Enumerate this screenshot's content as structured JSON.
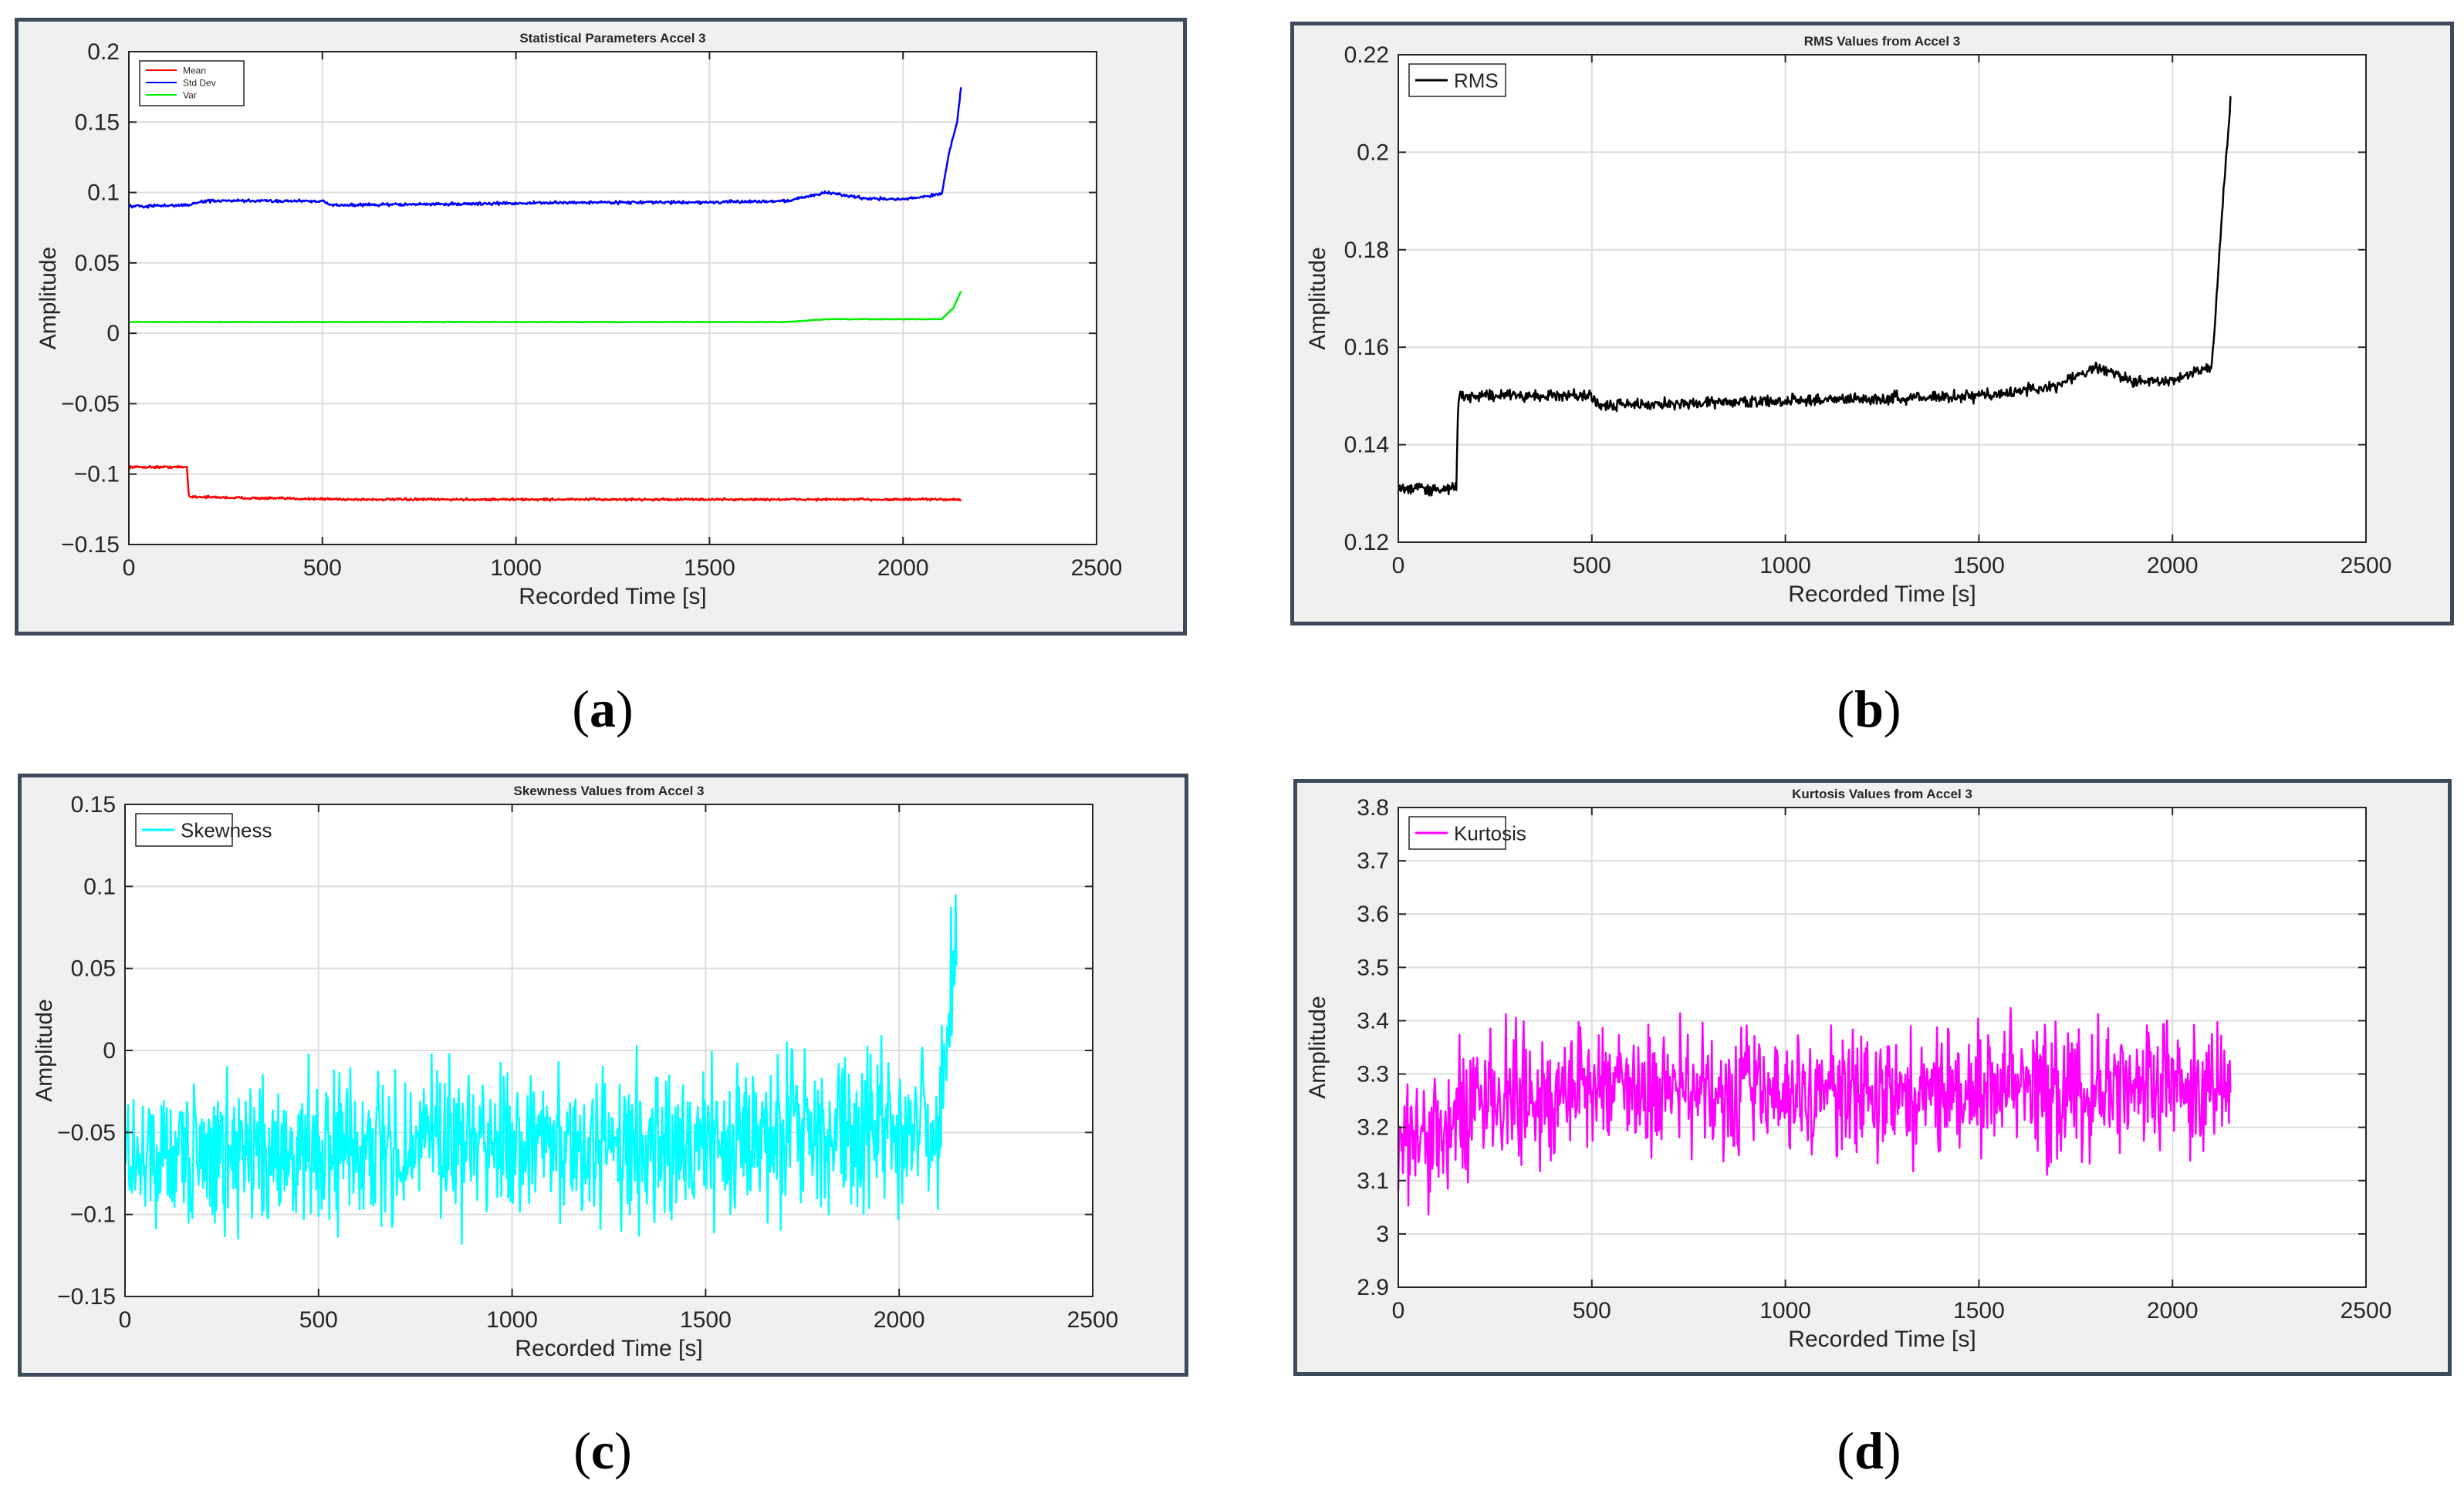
{
  "figure": {
    "captions": [
      {
        "open": "(",
        "letter": "a",
        "close": ")"
      },
      {
        "open": "(",
        "letter": "b",
        "close": ")"
      },
      {
        "open": "(",
        "letter": "c",
        "close": ")"
      },
      {
        "open": "(",
        "letter": "d",
        "close": ")"
      }
    ]
  },
  "chart_data": [
    {
      "type": "line",
      "title": "Statistical Parameters Accel 3",
      "xlabel": "Recorded Time [s]",
      "ylabel": "Amplitude",
      "xlim": [
        0,
        2500
      ],
      "ylim": [
        -0.15,
        0.2
      ],
      "xticks": [
        0,
        500,
        1000,
        1500,
        2000,
        2500
      ],
      "yticks": [
        -0.15,
        -0.1,
        -0.05,
        0,
        0.05,
        0.1,
        0.15,
        0.2
      ],
      "ytick_labels": [
        "−0.15",
        "−0.1",
        "−0.05",
        "0",
        "0.05",
        "0.1",
        "0.15",
        "0.2"
      ],
      "grid": true,
      "legend_position": "top-left",
      "series": [
        {
          "name": "Mean",
          "color": "#ff0000",
          "noise": 0.0008,
          "x": [
            0,
            150,
            155,
            300,
            600,
            900,
            1200,
            1500,
            1800,
            2000,
            2150
          ],
          "y": [
            -0.095,
            -0.095,
            -0.116,
            -0.117,
            -0.118,
            -0.118,
            -0.118,
            -0.118,
            -0.118,
            -0.118,
            -0.118
          ]
        },
        {
          "name": "Std Dev",
          "color": "#0000ff",
          "noise": 0.001,
          "x": [
            0,
            150,
            200,
            500,
            520,
            900,
            1200,
            1500,
            1700,
            1800,
            1900,
            2000,
            2100,
            2120,
            2140,
            2150
          ],
          "y": [
            0.09,
            0.091,
            0.094,
            0.094,
            0.091,
            0.092,
            0.093,
            0.093,
            0.094,
            0.1,
            0.096,
            0.095,
            0.099,
            0.13,
            0.15,
            0.175
          ]
        },
        {
          "name": "Var",
          "color": "#00ee00",
          "noise": 0.0002,
          "x": [
            0,
            500,
            1000,
            1700,
            1800,
            2100,
            2130,
            2150
          ],
          "y": [
            0.008,
            0.008,
            0.008,
            0.008,
            0.01,
            0.01,
            0.018,
            0.03
          ]
        }
      ]
    },
    {
      "type": "line",
      "title": "RMS Values from Accel 3",
      "xlabel": "Recorded Time [s]",
      "ylabel": "Amplitude",
      "xlim": [
        0,
        2500
      ],
      "ylim": [
        0.12,
        0.22
      ],
      "xticks": [
        0,
        500,
        1000,
        1500,
        2000,
        2500
      ],
      "yticks": [
        0.12,
        0.14,
        0.16,
        0.18,
        0.2,
        0.22
      ],
      "ytick_labels": [
        "0.12",
        "0.14",
        "0.16",
        "0.18",
        "0.2",
        "0.22"
      ],
      "grid": true,
      "legend_position": "top-left",
      "series": [
        {
          "name": "RMS",
          "color": "#000000",
          "noise": 0.0012,
          "x": [
            0,
            150,
            155,
            500,
            520,
            1000,
            1500,
            1700,
            1800,
            1900,
            2000,
            2100,
            2110,
            2130,
            2150
          ],
          "y": [
            0.131,
            0.131,
            0.15,
            0.15,
            0.148,
            0.149,
            0.15,
            0.152,
            0.156,
            0.153,
            0.153,
            0.156,
            0.165,
            0.19,
            0.21
          ]
        }
      ]
    },
    {
      "type": "line",
      "title": "Skewness Values from Accel 3",
      "xlabel": "Recorded Time [s]",
      "ylabel": "Amplitude",
      "xlim": [
        0,
        2500
      ],
      "ylim": [
        -0.15,
        0.15
      ],
      "xticks": [
        0,
        500,
        1000,
        1500,
        2000,
        2500
      ],
      "yticks": [
        -0.15,
        -0.1,
        -0.05,
        0,
        0.05,
        0.1,
        0.15
      ],
      "ytick_labels": [
        "−0.15",
        "−0.1",
        "−0.05",
        "0",
        "0.05",
        "0.1",
        "0.15"
      ],
      "grid": true,
      "legend_position": "top-left",
      "series": [
        {
          "name": "Skewness",
          "color": "#00ffff",
          "noise": 0.045,
          "x": [
            0,
            500,
            1000,
            1500,
            1800,
            2000,
            2100,
            2120,
            2140,
            2150
          ],
          "y": [
            -0.065,
            -0.06,
            -0.058,
            -0.056,
            -0.05,
            -0.05,
            -0.05,
            -0.01,
            0.05,
            0.07
          ]
        }
      ]
    },
    {
      "type": "line",
      "title": "Kurtosis Values from Accel 3",
      "xlabel": "Recorded Time [s]",
      "ylabel": "Amplitude",
      "xlim": [
        0,
        2500
      ],
      "ylim": [
        2.9,
        3.8
      ],
      "xticks": [
        0,
        500,
        1000,
        1500,
        2000,
        2500
      ],
      "yticks": [
        2.9,
        3.0,
        3.1,
        3.2,
        3.3,
        3.4,
        3.5,
        3.6,
        3.7,
        3.8
      ],
      "ytick_labels": [
        "2.9",
        "3",
        "3.1",
        "3.2",
        "3.3",
        "3.4",
        "3.5",
        "3.6",
        "3.7",
        "3.8"
      ],
      "grid": true,
      "legend_position": "top-left",
      "series": [
        {
          "name": "Kurtosis",
          "color": "#ff00ff",
          "noise": 0.12,
          "x": [
            0,
            150,
            300,
            500,
            1000,
            1500,
            2000,
            2150
          ],
          "y": [
            3.18,
            3.22,
            3.26,
            3.27,
            3.26,
            3.27,
            3.28,
            3.27
          ]
        }
      ]
    }
  ]
}
